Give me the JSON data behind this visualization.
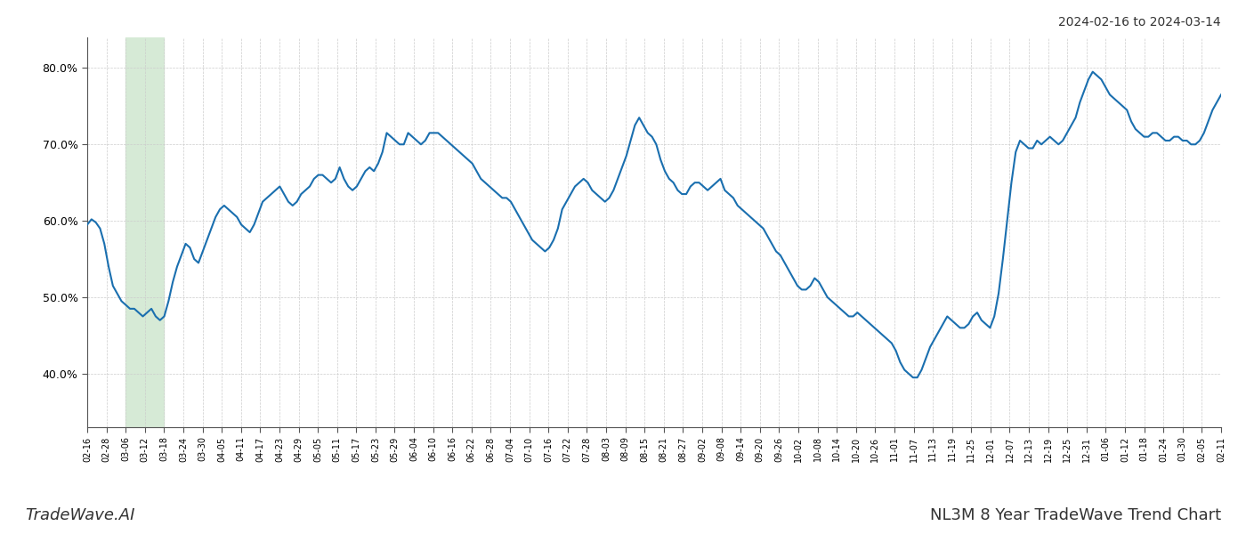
{
  "title_top_right": "2024-02-16 to 2024-03-14",
  "title_bottom_left": "TradeWave.AI",
  "title_bottom_right": "NL3M 8 Year TradeWave Trend Chart",
  "line_color": "#1a6faf",
  "line_width": 1.5,
  "bg_color": "#ffffff",
  "grid_color": "#cccccc",
  "highlight_color": "#d6ead6",
  "ylim": [
    33,
    84
  ],
  "yticks": [
    40,
    50,
    60,
    70,
    80
  ],
  "x_labels": [
    "02-16",
    "02-28",
    "03-06",
    "03-12",
    "03-18",
    "03-24",
    "03-30",
    "04-05",
    "04-11",
    "04-17",
    "04-23",
    "04-29",
    "05-05",
    "05-11",
    "05-17",
    "05-23",
    "05-29",
    "06-04",
    "06-10",
    "06-16",
    "06-22",
    "06-28",
    "07-04",
    "07-10",
    "07-16",
    "07-22",
    "07-28",
    "08-03",
    "08-09",
    "08-15",
    "08-21",
    "08-27",
    "09-02",
    "09-08",
    "09-14",
    "09-20",
    "09-26",
    "10-02",
    "10-08",
    "10-14",
    "10-20",
    "10-26",
    "11-01",
    "11-07",
    "11-13",
    "11-19",
    "11-25",
    "12-01",
    "12-07",
    "12-13",
    "12-19",
    "12-25",
    "12-31",
    "01-06",
    "01-12",
    "01-18",
    "01-24",
    "01-30",
    "02-05",
    "02-11"
  ],
  "highlight_start_label": "03-06",
  "highlight_end_label": "03-18",
  "values": [
    59.5,
    60.2,
    59.8,
    59.0,
    57.0,
    54.0,
    51.5,
    50.5,
    49.5,
    49.0,
    48.5,
    48.5,
    48.0,
    47.5,
    48.0,
    48.5,
    47.5,
    47.0,
    47.5,
    49.5,
    52.0,
    54.0,
    55.5,
    57.0,
    56.5,
    55.0,
    54.5,
    56.0,
    57.5,
    59.0,
    60.5,
    61.5,
    62.0,
    61.5,
    61.0,
    60.5,
    59.5,
    59.0,
    58.5,
    59.5,
    61.0,
    62.5,
    63.0,
    63.5,
    64.0,
    64.5,
    63.5,
    62.5,
    62.0,
    62.5,
    63.5,
    64.0,
    64.5,
    65.5,
    66.0,
    66.0,
    65.5,
    65.0,
    65.5,
    67.0,
    65.5,
    64.5,
    64.0,
    64.5,
    65.5,
    66.5,
    67.0,
    66.5,
    67.5,
    69.0,
    71.5,
    71.0,
    70.5,
    70.0,
    70.0,
    71.5,
    71.0,
    70.5,
    70.0,
    70.5,
    71.5,
    71.5,
    71.5,
    71.0,
    70.5,
    70.0,
    69.5,
    69.0,
    68.5,
    68.0,
    67.5,
    66.5,
    65.5,
    65.0,
    64.5,
    64.0,
    63.5,
    63.0,
    63.0,
    62.5,
    61.5,
    60.5,
    59.5,
    58.5,
    57.5,
    57.0,
    56.5,
    56.0,
    56.5,
    57.5,
    59.0,
    61.5,
    62.5,
    63.5,
    64.5,
    65.0,
    65.5,
    65.0,
    64.0,
    63.5,
    63.0,
    62.5,
    63.0,
    64.0,
    65.5,
    67.0,
    68.5,
    70.5,
    72.5,
    73.5,
    72.5,
    71.5,
    71.0,
    70.0,
    68.0,
    66.5,
    65.5,
    65.0,
    64.0,
    63.5,
    63.5,
    64.5,
    65.0,
    65.0,
    64.5,
    64.0,
    64.5,
    65.0,
    65.5,
    64.0,
    63.5,
    63.0,
    62.0,
    61.5,
    61.0,
    60.5,
    60.0,
    59.5,
    59.0,
    58.0,
    57.0,
    56.0,
    55.5,
    54.5,
    53.5,
    52.5,
    51.5,
    51.0,
    51.0,
    51.5,
    52.5,
    52.0,
    51.0,
    50.0,
    49.5,
    49.0,
    48.5,
    48.0,
    47.5,
    47.5,
    48.0,
    47.5,
    47.0,
    46.5,
    46.0,
    45.5,
    45.0,
    44.5,
    44.0,
    43.0,
    41.5,
    40.5,
    40.0,
    39.5,
    39.5,
    40.5,
    42.0,
    43.5,
    44.5,
    45.5,
    46.5,
    47.5,
    47.0,
    46.5,
    46.0,
    46.0,
    46.5,
    47.5,
    48.0,
    47.0,
    46.5,
    46.0,
    47.5,
    50.5,
    55.0,
    60.0,
    65.0,
    69.0,
    70.5,
    70.0,
    69.5,
    69.5,
    70.5,
    70.0,
    70.5,
    71.0,
    70.5,
    70.0,
    70.5,
    71.5,
    72.5,
    73.5,
    75.5,
    77.0,
    78.5,
    79.5,
    79.0,
    78.5,
    77.5,
    76.5,
    76.0,
    75.5,
    75.0,
    74.5,
    73.0,
    72.0,
    71.5,
    71.0,
    71.0,
    71.5,
    71.5,
    71.0,
    70.5,
    70.5,
    71.0,
    71.0,
    70.5,
    70.5,
    70.0,
    70.0,
    70.5,
    71.5,
    73.0,
    74.5,
    75.5,
    76.5
  ]
}
